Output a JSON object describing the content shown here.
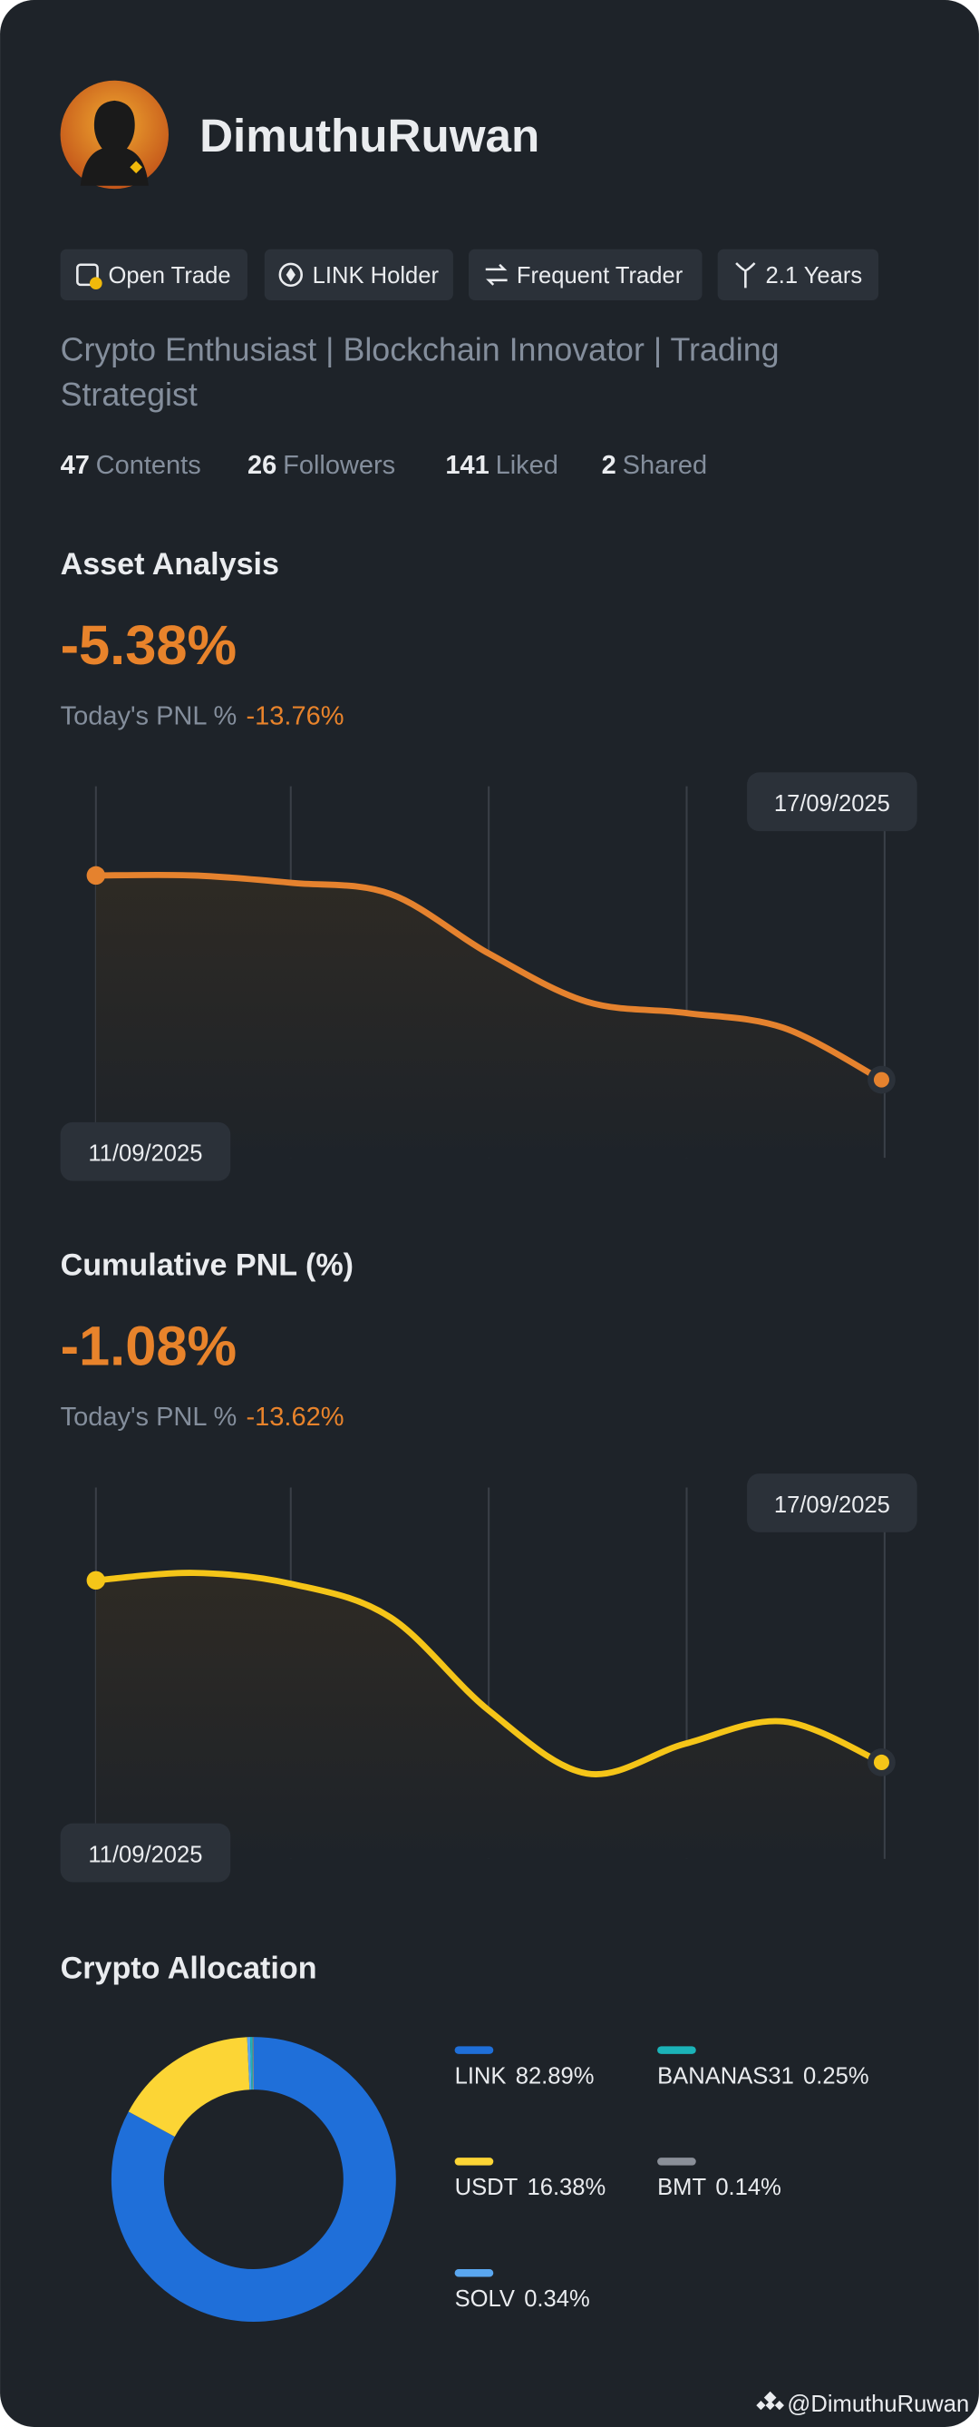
{
  "profile": {
    "name": "DimuthuRuwan",
    "badges": [
      "Open Trade",
      "LINK Holder",
      "Frequent Trader",
      "2.1 Years"
    ],
    "bio": [
      "Crypto Enthusiast | Blockchain Innovator | Trading",
      "Strategist"
    ],
    "stats": [
      {
        "value": 47,
        "label": "Contents"
      },
      {
        "value": 26,
        "label": "Followers"
      },
      {
        "value": 141,
        "label": "Liked"
      },
      {
        "value": 2,
        "label": "Shared"
      }
    ]
  },
  "chart_data": [
    {
      "type": "line",
      "title": "Asset Analysis",
      "headline": "-5.38%",
      "pnl_label": "Today's PNL %",
      "pnl_value": "-13.76%",
      "categories": [
        "11/09/2025",
        null,
        null,
        null,
        null,
        null,
        null,
        null,
        "17/09/2025"
      ],
      "series": [
        {
          "color": "#e5822e",
          "values": [
            76,
            76,
            74,
            71,
            55,
            42,
            39,
            35,
            21
          ]
        }
      ],
      "ylim": [
        0,
        100
      ]
    },
    {
      "type": "line",
      "title": "Cumulative PNL (%)",
      "headline": "-1.08%",
      "pnl_label": "Today's PNL %",
      "pnl_value": "-13.62%",
      "categories": [
        "11/09/2025",
        null,
        null,
        null,
        null,
        null,
        null,
        null,
        "17/09/2025"
      ],
      "series": [
        {
          "color": "#f5c518",
          "values": [
            75,
            77,
            74,
            65,
            40,
            23,
            31,
            37,
            26
          ]
        }
      ],
      "ylim": [
        0,
        100
      ]
    },
    {
      "type": "donut",
      "title": "Crypto Allocation",
      "categories": [
        "LINK",
        "USDT",
        "SOLV",
        "BANANAS31",
        "BMT"
      ],
      "values": [
        82.89,
        16.38,
        0.34,
        0.25,
        0.14
      ],
      "value_labels": [
        "82.89%",
        "16.38%",
        "0.34%",
        "0.25%",
        "0.14%"
      ],
      "colors": [
        "#1f6fd9",
        "#fcd535",
        "#5aa7f0",
        "#1bb3b8",
        "#8a8f98"
      ]
    }
  ],
  "watermark": "@DimuthuRuwan"
}
